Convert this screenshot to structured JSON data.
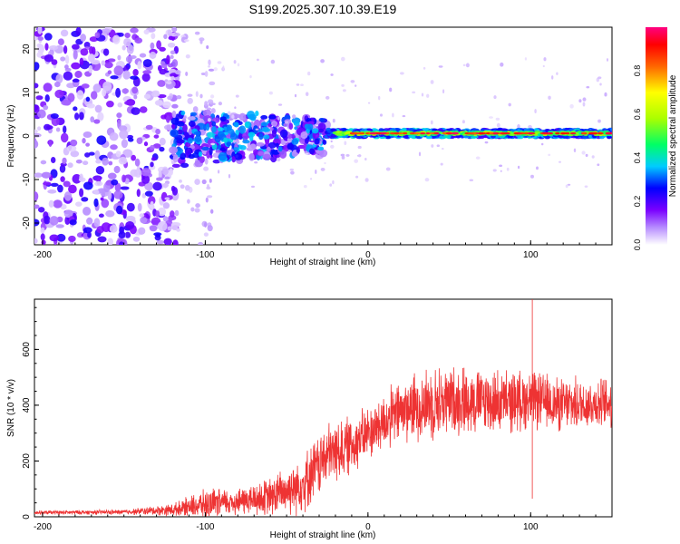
{
  "title": "S199.2025.307.10.39.E19",
  "chart_data": [
    {
      "type": "heatmap",
      "xlabel": "Height of straight line (km)",
      "ylabel": "Frequency (Hz)",
      "xlim": [
        -205,
        150
      ],
      "ylim": [
        -25,
        25
      ],
      "xticks": [
        -200,
        -100,
        0,
        100
      ],
      "yticks": [
        -20,
        -10,
        0,
        10,
        20
      ],
      "colorbar": {
        "label": "Normalized spectral amplitude",
        "range": [
          0,
          1
        ],
        "ticks": [
          "0.0",
          "0.2",
          "0.4",
          "0.6",
          "0.8"
        ],
        "tick_values": [
          0,
          0.2,
          0.4,
          0.6,
          0.8
        ],
        "colormap": [
          "#ffffff",
          "#8800ff",
          "#0000ff",
          "#00ccff",
          "#00ff66",
          "#aaff00",
          "#ffff00",
          "#ff6600",
          "#ff0000",
          "#ff0080"
        ]
      },
      "description_regions": [
        {
          "x_range": [
            -205,
            -120
          ],
          "freq_range": [
            -25,
            25
          ],
          "amplitude": [
            0.05,
            0.3
          ]
        },
        {
          "x_range": [
            -120,
            -25
          ],
          "freq_range": [
            -10,
            7
          ],
          "amplitude": [
            0.1,
            0.4
          ]
        },
        {
          "x_range": [
            -20,
            150
          ],
          "freq_range": [
            -1,
            2
          ],
          "amplitude": [
            0.4,
            0.95
          ],
          "center_freq": 0.6
        }
      ]
    },
    {
      "type": "line",
      "xlabel": "Height of straight line (km)",
      "ylabel": "SNR (10 * v/v)",
      "xlim": [
        -205,
        150
      ],
      "ylim": [
        0,
        780
      ],
      "xticks": [
        -200,
        -100,
        0,
        100
      ],
      "yticks": [
        0,
        200,
        400,
        600
      ],
      "series": [
        {
          "name": "SNR",
          "color": "#ee3333",
          "envelope": {
            "x": [
              -205,
              -150,
              -120,
              -100,
              -80,
              -60,
              -40,
              -25,
              -10,
              0,
              20,
              40,
              60,
              80,
              100,
              120,
              150
            ],
            "mean": [
              15,
              17,
              25,
              45,
              55,
              70,
              120,
              220,
              260,
              300,
              380,
              410,
              420,
              410,
              420,
              400,
              410
            ],
            "spread": [
              8,
              10,
              25,
              60,
              55,
              80,
              120,
              130,
              120,
              110,
              130,
              150,
              140,
              130,
              120,
              110,
              100
            ]
          },
          "spikes": [
            {
              "x": 101,
              "y": 780
            },
            {
              "x": 101,
              "y": 65
            }
          ]
        }
      ]
    }
  ]
}
